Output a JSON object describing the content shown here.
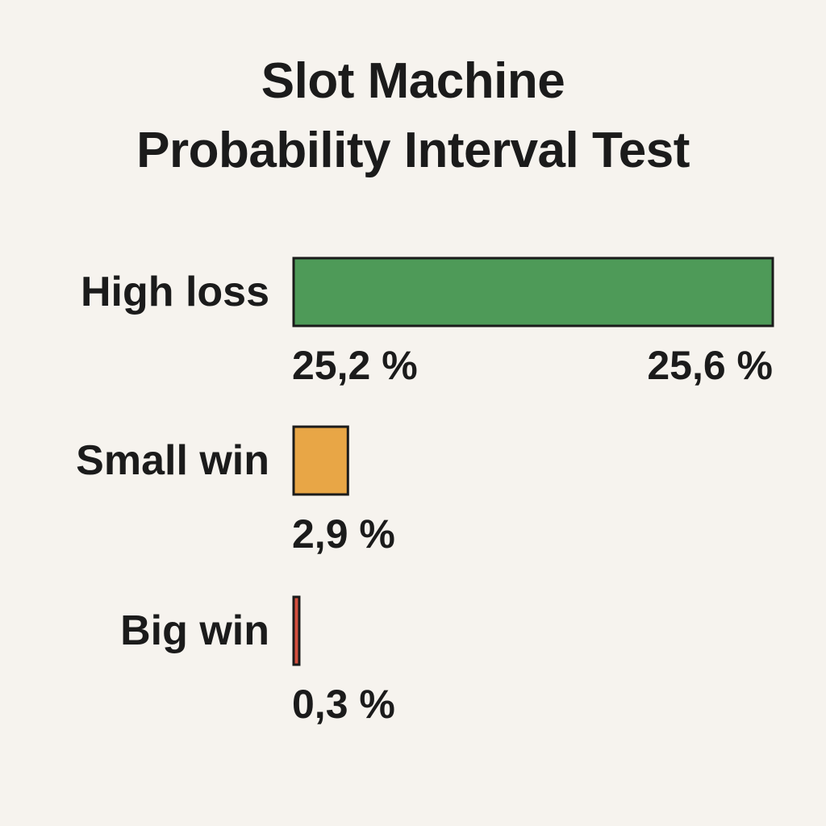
{
  "chart_data": {
    "type": "bar",
    "orientation": "horizontal",
    "title": [
      "Slot Machine",
      "Probability Interval Test"
    ],
    "categories": [
      "High loss",
      "Small win",
      "Big win"
    ],
    "series": [
      {
        "values": [
          25.6,
          2.9,
          0.3
        ],
        "labels": [
          [
            "25,2 %",
            "25,6 %"
          ],
          [
            "2,9 %"
          ],
          [
            "0,3 %"
          ]
        ],
        "colors": [
          "#4e9a58",
          "#e8a646",
          "#d4503f"
        ]
      }
    ],
    "grid": false,
    "legend": "none"
  }
}
